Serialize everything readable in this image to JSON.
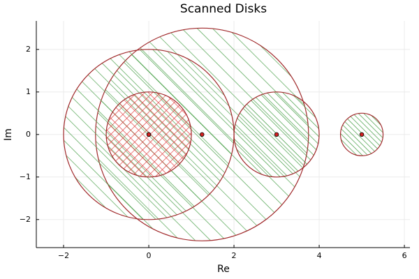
{
  "chart_data": {
    "type": "disks",
    "title": "Scanned Disks",
    "xlabel": "Re",
    "ylabel": "Im",
    "xlim": [
      -2.64,
      6.13
    ],
    "ylim": [
      -2.66,
      2.67
    ],
    "xticks": [
      {
        "value": -2,
        "label": "−2"
      },
      0,
      2,
      4,
      6
    ],
    "yticks": [
      {
        "value": -2,
        "label": "−2"
      },
      {
        "value": -1,
        "label": "−1"
      },
      0,
      1,
      2
    ],
    "grid": true,
    "edge_color": "#a0282a",
    "center_color": "#d42020",
    "disks": [
      {
        "x": 1.25,
        "y": 0,
        "r": 2.5,
        "hatch": "diagonal",
        "hatch_color": "#4ea24e"
      },
      {
        "x": 0,
        "y": 0,
        "r": 2,
        "hatch": "diagonal",
        "hatch_color": "#4ea24e"
      },
      {
        "x": 0,
        "y": 0,
        "r": 1,
        "hatch": "cross",
        "hatch_color": "#e04040"
      },
      {
        "x": 3,
        "y": 0,
        "r": 1,
        "hatch": "diagonal",
        "hatch_color": "#3f9a3f"
      },
      {
        "x": 5,
        "y": 0,
        "r": 0.5,
        "hatch": "diagonal",
        "hatch_color": "#3f9a3f"
      }
    ]
  }
}
